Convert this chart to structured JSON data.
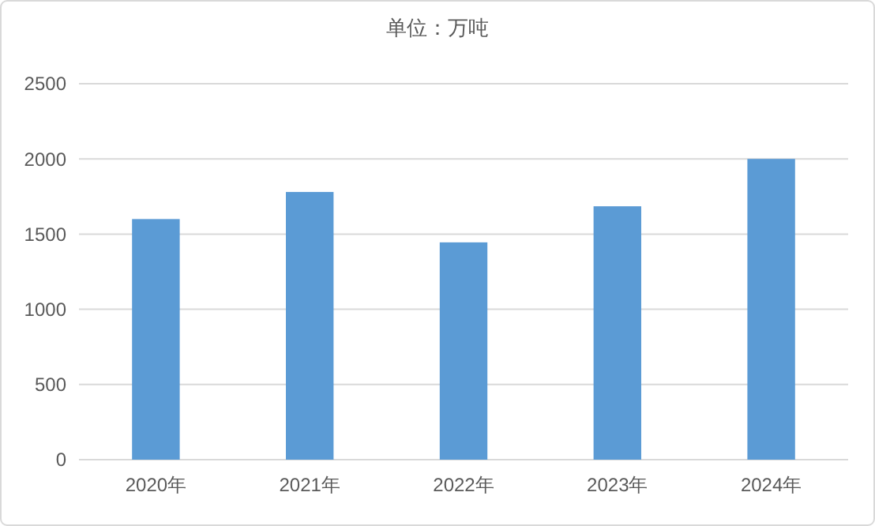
{
  "chart_data": {
    "type": "bar",
    "title": "单位：万吨",
    "categories": [
      "2020年",
      "2021年",
      "2022年",
      "2023年",
      "2024年"
    ],
    "values": [
      1600,
      1780,
      1445,
      1685,
      2000
    ],
    "color": "#5b9bd5",
    "ylim": [
      0,
      2500
    ],
    "yticks": [
      0,
      500,
      1000,
      1500,
      2000,
      2500
    ],
    "grid": "y"
  }
}
